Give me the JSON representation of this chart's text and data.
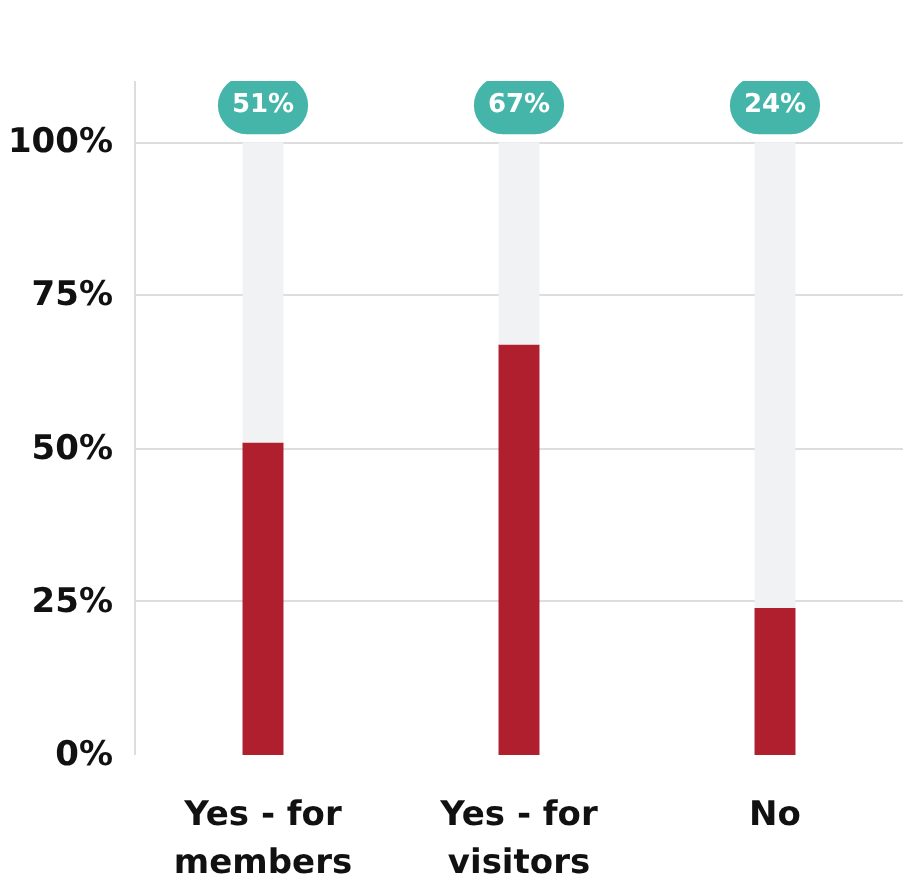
{
  "chart_data": {
    "type": "bar",
    "stacked": true,
    "categories": [
      "Yes - for members",
      "Yes - for visitors",
      "No"
    ],
    "series": [
      {
        "color": "#b01f2e",
        "values": [
          51,
          67,
          24
        ]
      },
      {
        "color": "#f1f2f4",
        "values": [
          49,
          33,
          76
        ]
      }
    ],
    "annotations": [
      {
        "text": "51%",
        "x": "Yes - for members",
        "y": 100
      },
      {
        "text": "67%",
        "x": "Yes - for visitors",
        "y": 100
      },
      {
        "text": "24%",
        "x": "No",
        "y": 100
      }
    ],
    "ylim": [
      0,
      110
    ],
    "yticks": [
      {
        "value": 0,
        "label": "0%"
      },
      {
        "value": 25,
        "label": "25%"
      },
      {
        "value": 50,
        "label": "50%"
      },
      {
        "value": 75,
        "label": "75%"
      },
      {
        "value": 100,
        "label": "100%"
      }
    ],
    "grid": "y"
  }
}
